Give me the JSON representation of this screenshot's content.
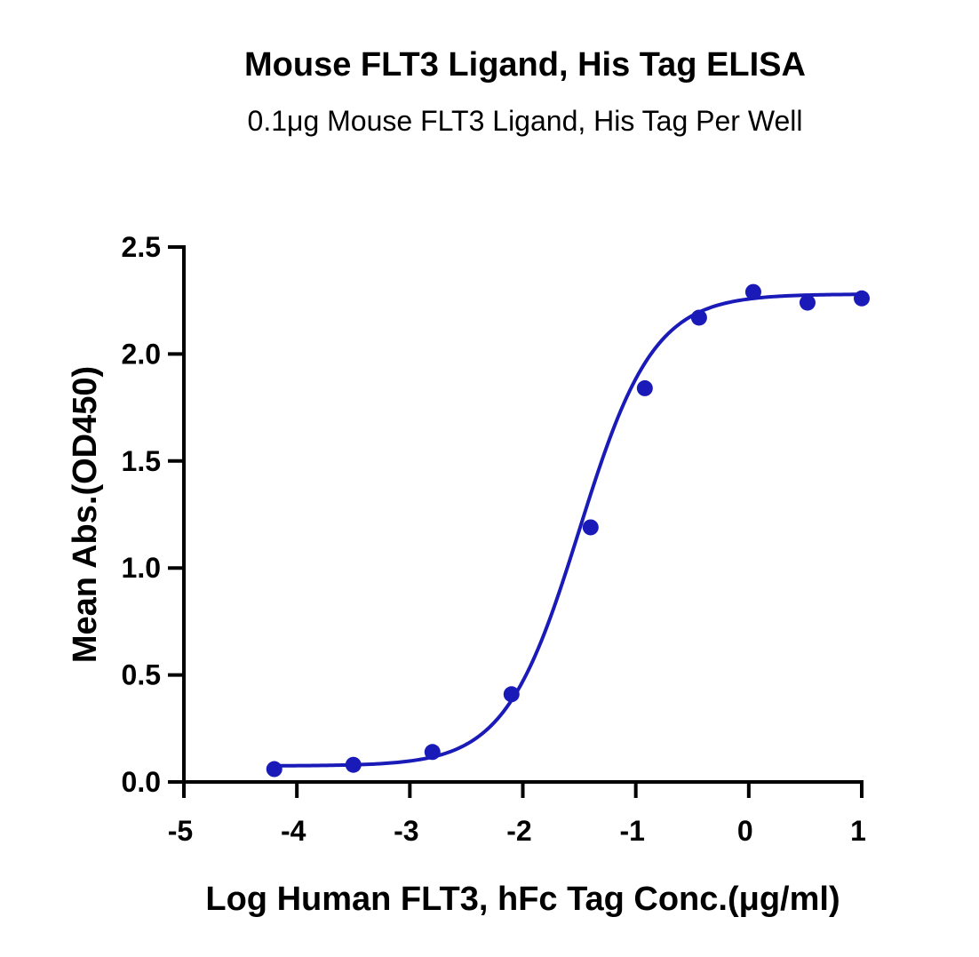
{
  "chart_data": {
    "type": "scatter",
    "title": "Mouse FLT3 Ligand, His Tag ELISA",
    "subtitle": "0.1μg Mouse FLT3 Ligand, His Tag Per Well",
    "xlabel": "Log Human FLT3, hFc Tag Conc.(μg/ml)",
    "ylabel": "Mean Abs.(OD450)",
    "xlim": [
      -5,
      1
    ],
    "ylim": [
      0,
      2.5
    ],
    "x_ticks": [
      "-5",
      "-4",
      "-3",
      "-2",
      "-1",
      "0",
      "1"
    ],
    "y_ticks": [
      "0.0",
      "0.5",
      "1.0",
      "1.5",
      "2.0",
      "2.5"
    ],
    "grid": false,
    "series": [
      {
        "color": "#1a1ab8",
        "x": [
          -4.2,
          -3.5,
          -2.8,
          -2.1,
          -1.4,
          -0.92,
          -0.44,
          0.04,
          0.52,
          1.0
        ],
        "values": [
          0.06,
          0.08,
          0.14,
          0.41,
          1.19,
          1.84,
          2.17,
          2.29,
          2.24,
          2.26
        ],
        "fit": {
          "model": "4PL",
          "bottom": 0.075,
          "top": 2.28,
          "logEC50": -1.5,
          "hill": 1.32
        }
      }
    ]
  }
}
